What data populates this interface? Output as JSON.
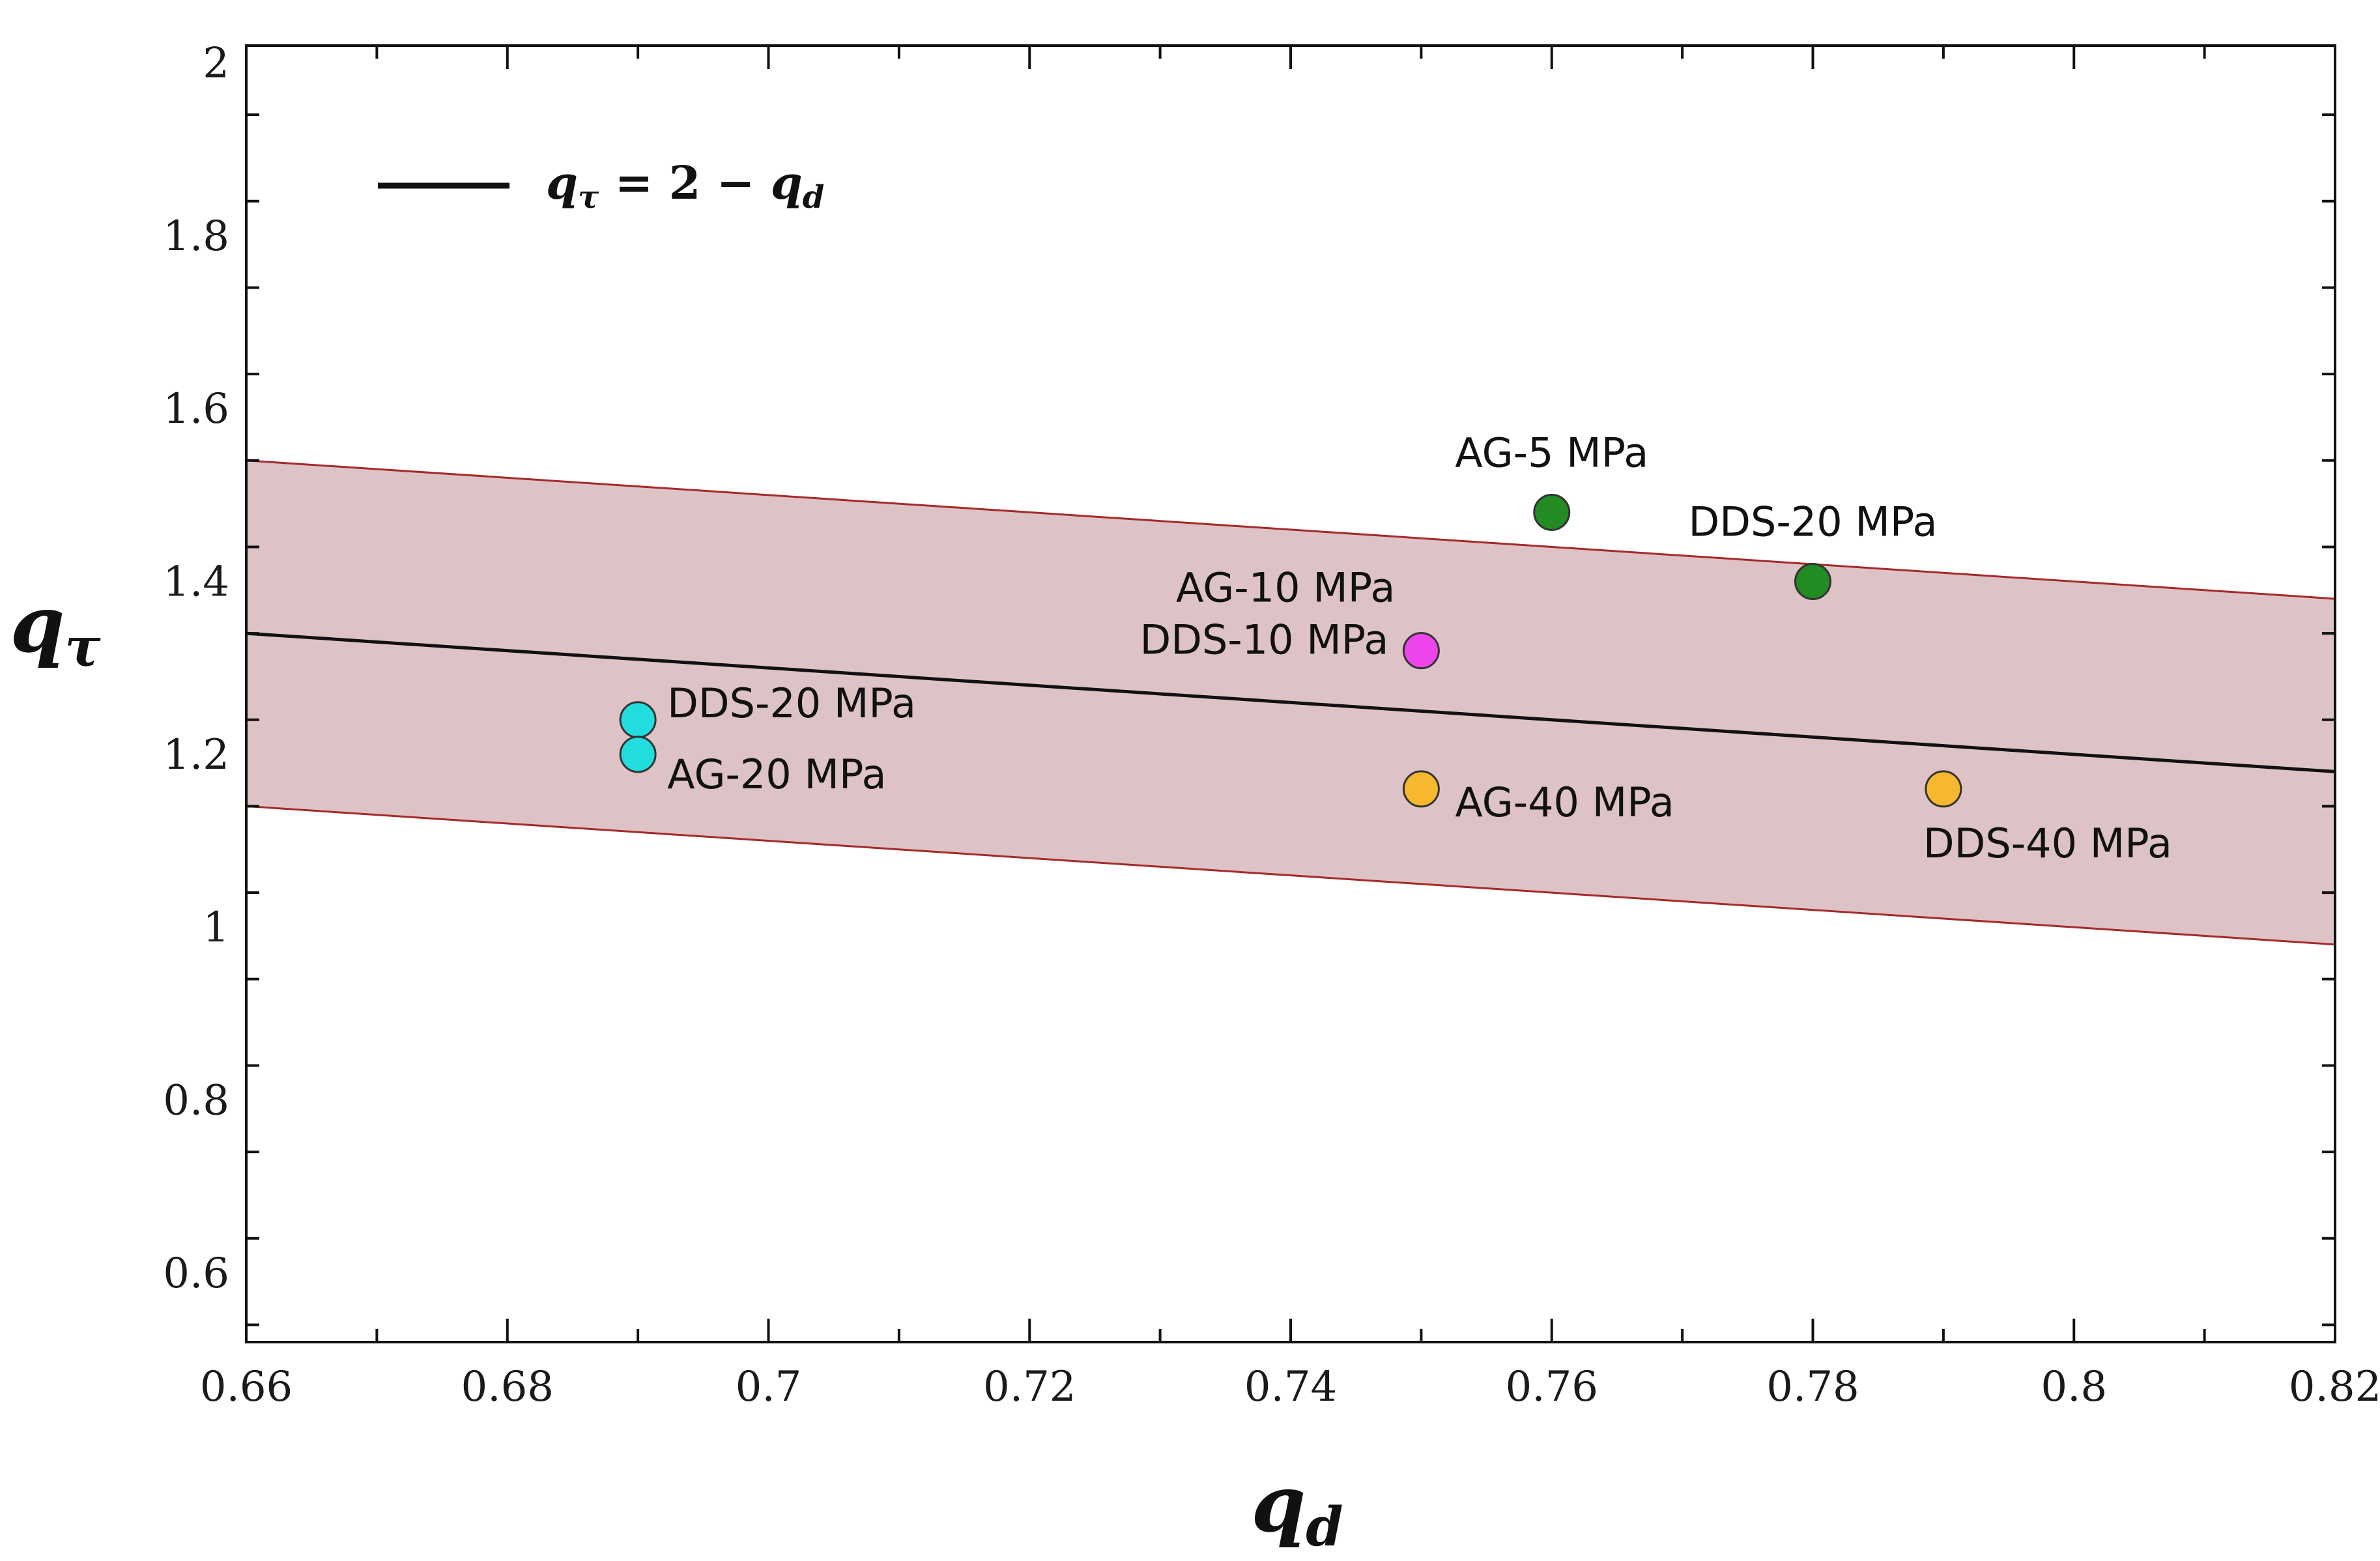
{
  "chart_data": {
    "type": "scatter",
    "title": "",
    "xlabel": "q",
    "xlabel_sub": "d",
    "ylabel": "q",
    "ylabel_sub": "τ",
    "xlim": [
      0.66,
      0.82
    ],
    "ylim": [
      0.52,
      2.02
    ],
    "x_ticks": [
      0.66,
      0.68,
      0.7,
      0.72,
      0.74,
      0.76,
      0.78,
      0.8,
      0.82
    ],
    "x_tick_labels": [
      "0.66",
      "0.68",
      "0.7",
      "0.72",
      "0.74",
      "0.76",
      "0.78",
      "0.8",
      "0.82"
    ],
    "y_ticks": [
      0.6,
      0.8,
      1.0,
      1.2,
      1.4,
      1.6,
      1.8,
      2.0
    ],
    "y_tick_labels": [
      "0.6",
      "0.8",
      "1",
      "1.2",
      "1.4",
      "1.6",
      "1.8",
      "2"
    ],
    "legend": {
      "position": "top-left",
      "entry": {
        "q": "q",
        "sub": "τ",
        "rest": " = 2 − ",
        "q2": "q",
        "sub2": "d"
      }
    },
    "line": {
      "name": "q_τ = 2 − q_d",
      "intercept": 2.0,
      "slope": -1.0,
      "color": "#111111"
    },
    "band": {
      "offset": 0.2,
      "fill": "#ddc3c6",
      "edge_color": "#a52a2a"
    },
    "points": [
      {
        "label": "AG-5 MPa",
        "x": 0.76,
        "y": 1.48,
        "color": "#228b22"
      },
      {
        "label": "DDS-20 MPa",
        "x": 0.78,
        "y": 1.4,
        "color": "#228b22"
      },
      {
        "label": "AG-10 MPa",
        "label2": "DDS-10 MPa",
        "x": 0.75,
        "y": 1.32,
        "color": "#ee44ee"
      },
      {
        "label": "DDS-20 MPa",
        "x": 0.69,
        "y": 1.24,
        "color": "#22dddd"
      },
      {
        "label": "AG-20 MPa",
        "x": 0.69,
        "y": 1.2,
        "color": "#22dddd"
      },
      {
        "label": "AG-40 MPa",
        "x": 0.75,
        "y": 1.16,
        "color": "#f5b82e"
      },
      {
        "label": "DDS-40 MPa",
        "x": 0.79,
        "y": 1.16,
        "color": "#f5b82e"
      }
    ]
  }
}
